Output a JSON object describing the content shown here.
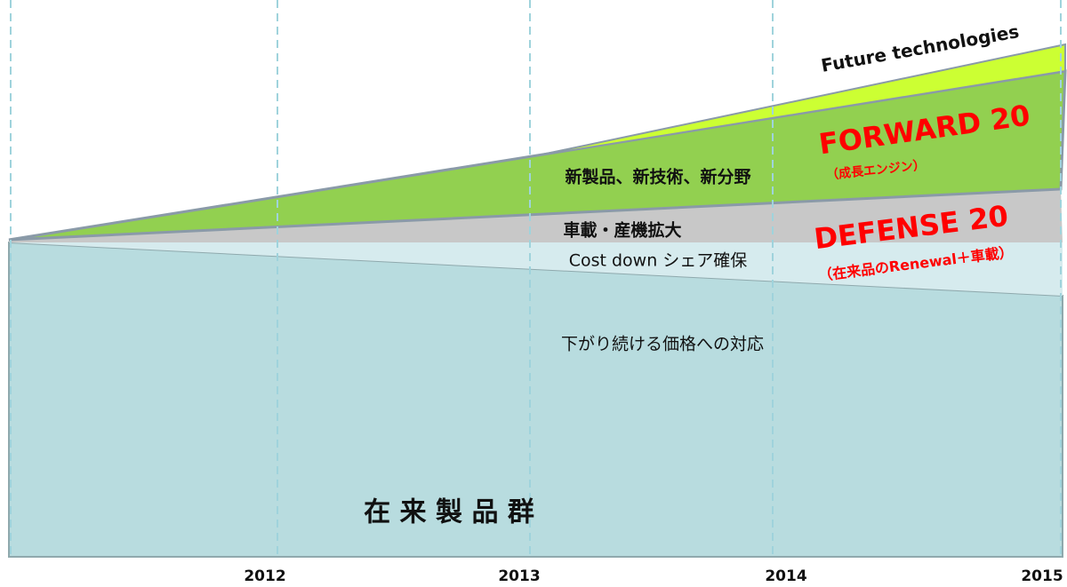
{
  "years": [
    "2012",
    "2013",
    "2014",
    "2015"
  ],
  "labels": {
    "future": "Future technologies",
    "forward": "FORWARD 20",
    "forward_sub": "（成長エンジン）",
    "new_fields": "新製品、新技術、新分野",
    "auto_industry": "車載・産機拡大",
    "cost_down": "Cost down シェア確保",
    "defense": "DEFENSE 20",
    "defense_sub": "（在来品のRenewal＋車載）",
    "price": "下がり続ける価格への対応",
    "legacy": "在 来 製 品 群"
  }
}
